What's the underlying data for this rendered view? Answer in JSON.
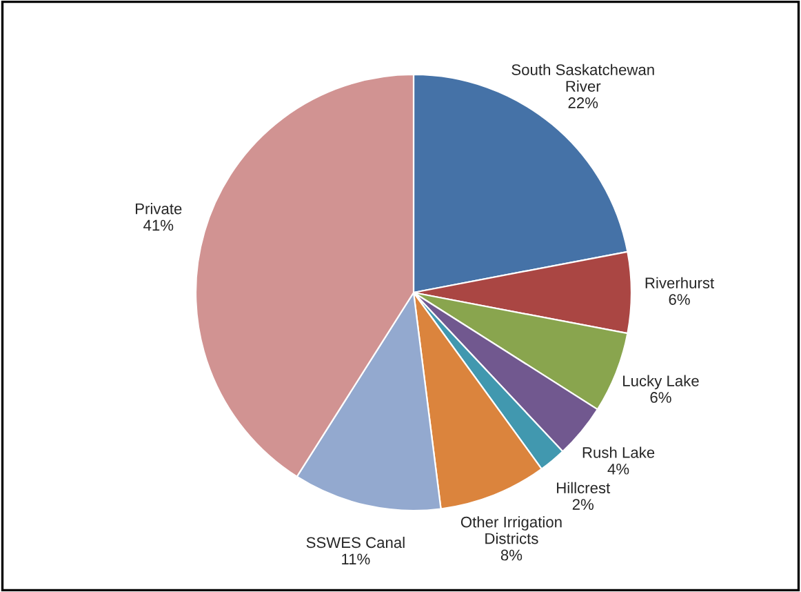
{
  "chart_data": {
    "type": "pie",
    "categories": [
      "South Saskatchewan\nRiver",
      "Riverhurst",
      "Lucky Lake",
      "Rush Lake",
      "Hillcrest",
      "Other Irrigation\nDistricts",
      "SSWES Canal",
      "Private"
    ],
    "values": [
      22,
      6,
      6,
      4,
      2,
      8,
      11,
      41
    ],
    "value_labels": [
      "22%",
      "6%",
      "6%",
      "4%",
      "2%",
      "8%",
      "11%",
      "41%"
    ],
    "colors": [
      "#4572a7",
      "#aa4643",
      "#89a54e",
      "#71588f",
      "#4198af",
      "#db843d",
      "#93a9cf",
      "#d19392"
    ]
  }
}
